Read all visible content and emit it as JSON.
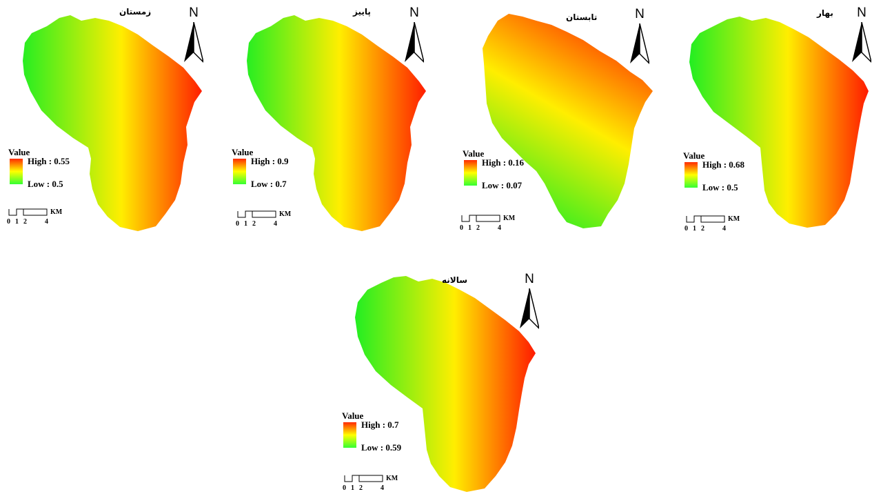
{
  "legend_title": "Value",
  "north_letter": "N",
  "scale_unit": "KM",
  "scale_ticks": [
    "0",
    "1",
    "2",
    "4"
  ],
  "ramp_colors": [
    "#ff2a00",
    "#ffff00",
    "#33ff33"
  ],
  "maps": [
    {
      "title": "زمستان",
      "high": "High : 0.55",
      "low": "Low : 0.5"
    },
    {
      "title": "پاییز",
      "high": "High : 0.9",
      "low": "Low : 0.7"
    },
    {
      "title": "تابستان",
      "high": "High : 0.16",
      "low": "Low : 0.07"
    },
    {
      "title": "بهار",
      "high": "High : 0.68",
      "low": "Low : 0.5"
    },
    {
      "title": "سالانه",
      "high": "High : 0.7",
      "low": "Low : 0.59"
    }
  ]
}
